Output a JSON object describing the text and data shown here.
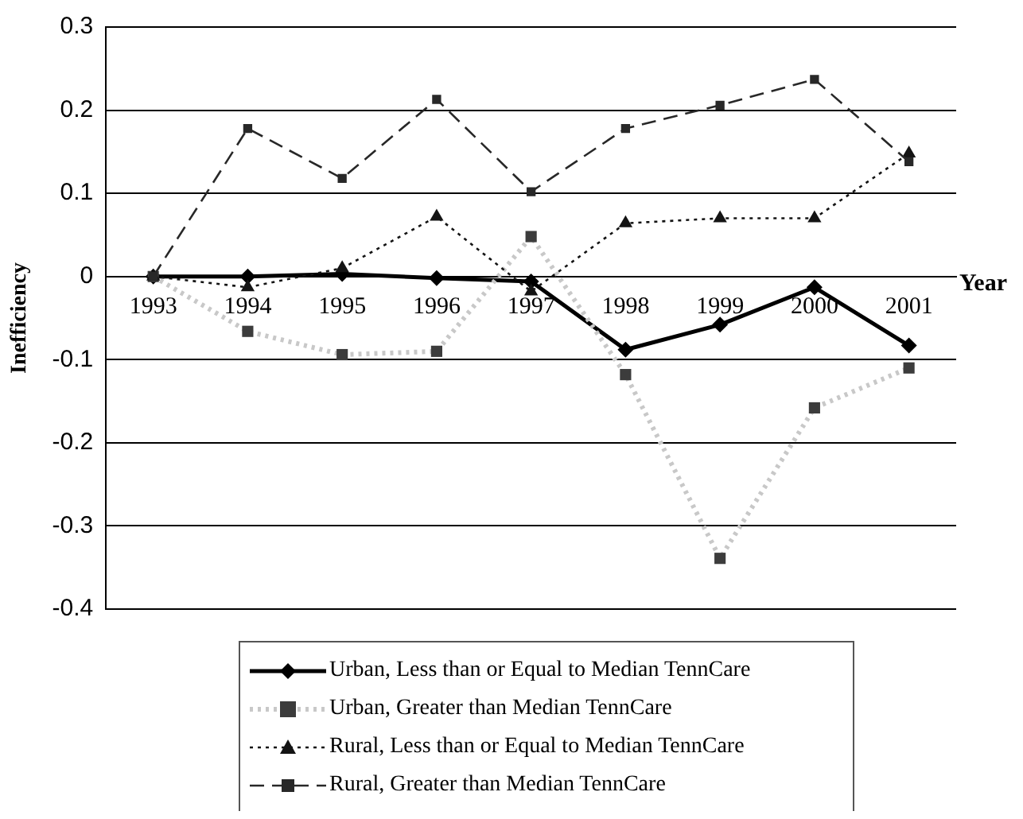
{
  "chart_data": {
    "type": "line",
    "xlabel": "Year",
    "ylabel": "Inefficiency",
    "categories": [
      "1993",
      "1994",
      "1995",
      "1996",
      "1997",
      "1998",
      "1999",
      "2000",
      "2001"
    ],
    "series": [
      {
        "name": "Urban, Less than or Equal to Median TennCare",
        "color": "#000000",
        "marker": "diamond",
        "line_style": "solid",
        "values": [
          0,
          0,
          0.003,
          -0.002,
          -0.006,
          -0.088,
          -0.058,
          -0.013,
          -0.083
        ]
      },
      {
        "name": "Urban, Greater than Median TennCare",
        "color": "#c8c8c8",
        "marker": "square",
        "line_style": "dotted",
        "values": [
          0,
          -0.066,
          -0.094,
          -0.09,
          0.048,
          -0.118,
          -0.339,
          -0.158,
          -0.11
        ]
      },
      {
        "name": "Rural, Less than or Equal to Median TennCare",
        "color": "#141414",
        "marker": "triangle",
        "line_style": "dotted",
        "values": [
          0,
          -0.013,
          0.01,
          0.072,
          -0.018,
          0.064,
          0.07,
          0.07,
          0.148
        ]
      },
      {
        "name": "Rural, Greater than Median TennCare",
        "color": "#282828",
        "marker": "square",
        "line_style": "dashed",
        "values": [
          0,
          0.178,
          0.118,
          0.213,
          0.102,
          0.178,
          0.206,
          0.237,
          0.138
        ]
      }
    ],
    "ylim": [
      -0.4,
      0.3
    ],
    "yticks": [
      -0.4,
      -0.3,
      -0.2,
      -0.1,
      0,
      0.1,
      0.2,
      0.3
    ],
    "grid": "y",
    "legend": "bottom"
  }
}
